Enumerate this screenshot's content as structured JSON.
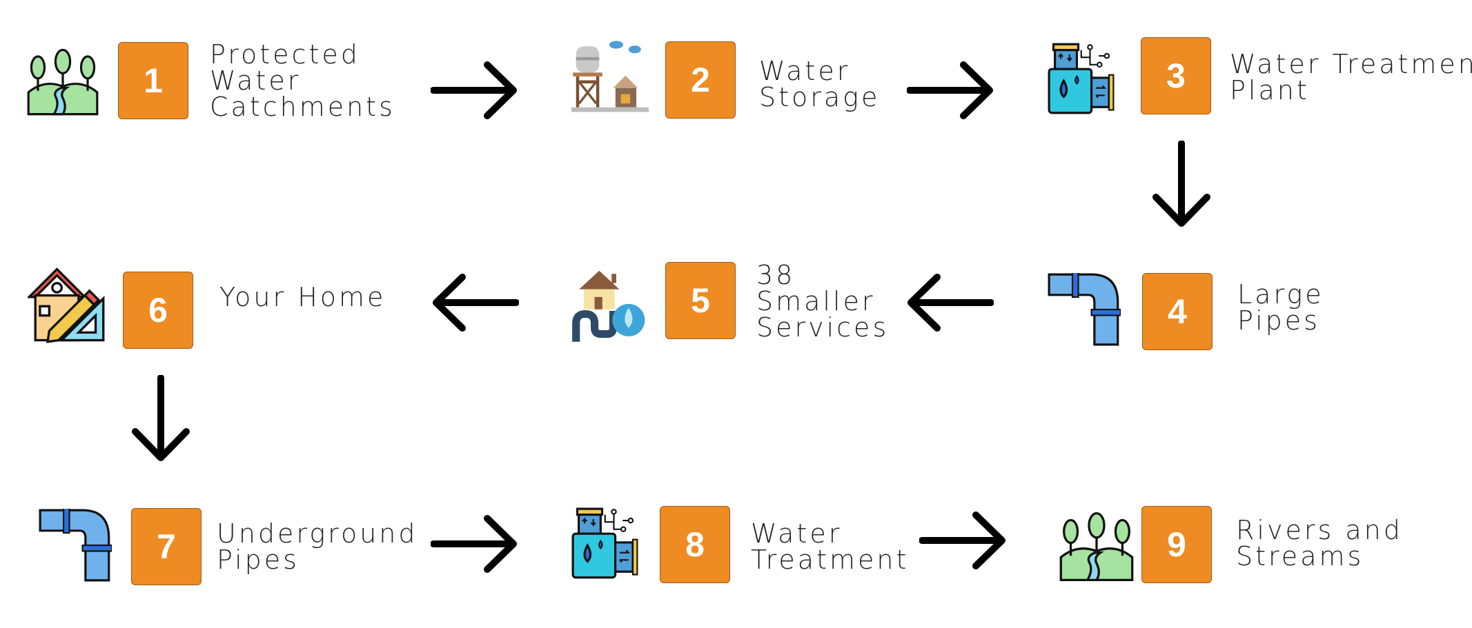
{
  "colors": {
    "badge": "#EE8B22",
    "badge_text": "#ffffff",
    "label_text": "#222222",
    "arrow": "#000000"
  },
  "steps": [
    {
      "number": "1",
      "lines": [
        "Protected",
        "Water",
        "Catchments"
      ],
      "icon": "forest-river-icon"
    },
    {
      "number": "2",
      "lines": [
        "Water",
        "Storage"
      ],
      "icon": "water-tower-icon"
    },
    {
      "number": "3",
      "lines": [
        "Water Treatment",
        "Plant"
      ],
      "icon": "treatment-plant-icon"
    },
    {
      "number": "4",
      "lines": [
        "Large",
        "Pipes"
      ],
      "icon": "pipe-elbow-icon"
    },
    {
      "number": "5",
      "lines": [
        "38",
        "Smaller",
        "Services"
      ],
      "icon": "house-plumbing-icon"
    },
    {
      "number": "6",
      "lines": [
        "Your Home"
      ],
      "icon": "home-design-icon"
    },
    {
      "number": "7",
      "lines": [
        "Underground",
        "Pipes"
      ],
      "icon": "pipe-elbow-icon"
    },
    {
      "number": "8",
      "lines": [
        "Water",
        "Treatment"
      ],
      "icon": "treatment-plant-icon"
    },
    {
      "number": "9",
      "lines": [
        "Rivers and",
        "Streams"
      ],
      "icon": "forest-river-icon"
    }
  ],
  "arrows": [
    {
      "from": "1",
      "to": "2",
      "direction": "right"
    },
    {
      "from": "2",
      "to": "3",
      "direction": "right"
    },
    {
      "from": "3",
      "to": "4",
      "direction": "down"
    },
    {
      "from": "4",
      "to": "5",
      "direction": "left"
    },
    {
      "from": "5",
      "to": "6",
      "direction": "left"
    },
    {
      "from": "6",
      "to": "7",
      "direction": "down"
    },
    {
      "from": "7",
      "to": "8",
      "direction": "right"
    },
    {
      "from": "8",
      "to": "9",
      "direction": "right"
    }
  ]
}
